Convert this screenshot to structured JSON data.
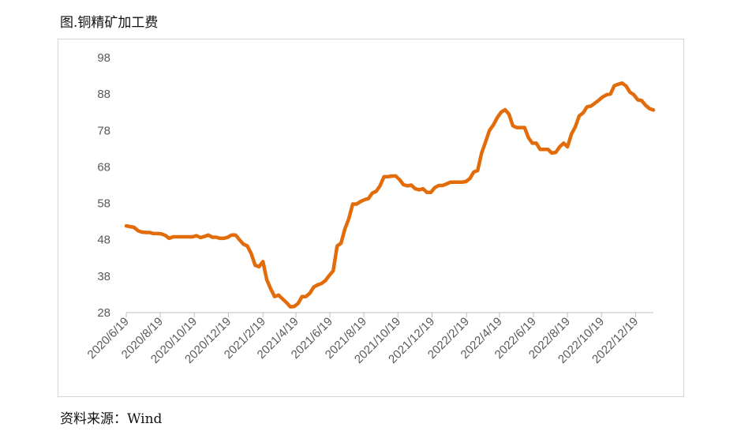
{
  "figure": {
    "title": "图.铜精矿加工费",
    "source": "资料来源：Wind"
  },
  "colors": {
    "line": "#E36C0A",
    "axis": "#BFBFBF",
    "text": "#595959"
  },
  "chart_data": {
    "type": "line",
    "title": "",
    "xlabel": "",
    "ylabel": "",
    "grid": false,
    "legend": "none",
    "yticks": [
      28,
      38,
      48,
      58,
      68,
      78,
      88,
      98
    ],
    "ylim": [
      28,
      98
    ],
    "xticks": [
      "2020/6/19",
      "2020/8/19",
      "2020/10/19",
      "2020/12/19",
      "2021/2/19",
      "2021/4/19",
      "2021/6/19",
      "2021/8/19",
      "2021/10/19",
      "2021/12/19",
      "2022/2/19",
      "2022/4/19",
      "2022/6/19",
      "2022/8/19",
      "2022/10/19",
      "2022/12/19"
    ],
    "series": [
      {
        "values": [
          [
            "2020-06-19",
            51.8
          ],
          [
            "2020-06-26",
            51.6
          ],
          [
            "2020-07-03",
            51.4
          ],
          [
            "2020-07-10",
            50.5
          ],
          [
            "2020-07-17",
            50.1
          ],
          [
            "2020-07-24",
            50.0
          ],
          [
            "2020-07-31",
            50.0
          ],
          [
            "2020-08-07",
            49.7
          ],
          [
            "2020-08-14",
            49.7
          ],
          [
            "2020-08-21",
            49.6
          ],
          [
            "2020-08-28",
            49.2
          ],
          [
            "2020-09-04",
            48.4
          ],
          [
            "2020-09-11",
            48.8
          ],
          [
            "2020-09-18",
            48.8
          ],
          [
            "2020-09-25",
            48.8
          ],
          [
            "2020-10-02",
            48.8
          ],
          [
            "2020-10-09",
            48.8
          ],
          [
            "2020-10-16",
            48.8
          ],
          [
            "2020-10-23",
            49.1
          ],
          [
            "2020-10-30",
            48.6
          ],
          [
            "2020-11-06",
            48.9
          ],
          [
            "2020-11-13",
            49.3
          ],
          [
            "2020-11-20",
            48.7
          ],
          [
            "2020-11-27",
            48.7
          ],
          [
            "2020-12-04",
            48.4
          ],
          [
            "2020-12-11",
            48.4
          ],
          [
            "2020-12-18",
            48.7
          ],
          [
            "2020-12-25",
            49.3
          ],
          [
            "2021-01-01",
            49.3
          ],
          [
            "2021-01-08",
            48.0
          ],
          [
            "2021-01-15",
            46.8
          ],
          [
            "2021-01-22",
            46.3
          ],
          [
            "2021-01-29",
            44.2
          ],
          [
            "2021-02-05",
            41.0
          ],
          [
            "2021-02-12",
            40.6
          ],
          [
            "2021-02-19",
            42.0
          ],
          [
            "2021-02-26",
            37.0
          ],
          [
            "2021-03-05",
            34.5
          ],
          [
            "2021-03-12",
            32.4
          ],
          [
            "2021-03-19",
            32.8
          ],
          [
            "2021-03-26",
            31.8
          ],
          [
            "2021-04-02",
            30.8
          ],
          [
            "2021-04-09",
            29.6
          ],
          [
            "2021-04-16",
            29.7
          ],
          [
            "2021-04-23",
            30.5
          ],
          [
            "2021-04-30",
            32.4
          ],
          [
            "2021-05-07",
            32.4
          ],
          [
            "2021-05-14",
            33.3
          ],
          [
            "2021-05-21",
            35.0
          ],
          [
            "2021-05-28",
            35.6
          ],
          [
            "2021-06-04",
            36.0
          ],
          [
            "2021-06-11",
            36.8
          ],
          [
            "2021-06-18",
            38.2
          ],
          [
            "2021-06-25",
            39.5
          ],
          [
            "2021-07-02",
            46.3
          ],
          [
            "2021-07-09",
            47.0
          ],
          [
            "2021-07-16",
            51.0
          ],
          [
            "2021-07-23",
            53.8
          ],
          [
            "2021-07-30",
            57.8
          ],
          [
            "2021-08-06",
            57.8
          ],
          [
            "2021-08-13",
            58.5
          ],
          [
            "2021-08-20",
            59.0
          ],
          [
            "2021-08-27",
            59.3
          ],
          [
            "2021-09-03",
            60.8
          ],
          [
            "2021-09-10",
            61.3
          ],
          [
            "2021-09-17",
            62.8
          ],
          [
            "2021-09-24",
            65.3
          ],
          [
            "2021-10-01",
            65.3
          ],
          [
            "2021-10-08",
            65.5
          ],
          [
            "2021-10-15",
            65.5
          ],
          [
            "2021-10-22",
            64.5
          ],
          [
            "2021-10-29",
            63.1
          ],
          [
            "2021-11-05",
            62.8
          ],
          [
            "2021-11-12",
            63.0
          ],
          [
            "2021-11-19",
            62.0
          ],
          [
            "2021-11-26",
            61.7
          ],
          [
            "2021-12-03",
            62.0
          ],
          [
            "2021-12-10",
            61.0
          ],
          [
            "2021-12-17",
            61.0
          ],
          [
            "2021-12-24",
            62.3
          ],
          [
            "2021-12-31",
            62.9
          ],
          [
            "2022-01-07",
            62.9
          ],
          [
            "2022-01-14",
            63.3
          ],
          [
            "2022-01-21",
            63.8
          ],
          [
            "2022-01-28",
            63.8
          ],
          [
            "2022-02-04",
            63.8
          ],
          [
            "2022-02-11",
            63.8
          ],
          [
            "2022-02-18",
            64.0
          ],
          [
            "2022-02-25",
            64.8
          ],
          [
            "2022-03-04",
            66.6
          ],
          [
            "2022-03-11",
            67.0
          ],
          [
            "2022-03-18",
            71.8
          ],
          [
            "2022-03-25",
            74.8
          ],
          [
            "2022-04-01",
            78.0
          ],
          [
            "2022-04-08",
            79.5
          ],
          [
            "2022-04-15",
            81.5
          ],
          [
            "2022-04-22",
            83.0
          ],
          [
            "2022-04-29",
            83.7
          ],
          [
            "2022-05-06",
            82.5
          ],
          [
            "2022-05-13",
            79.3
          ],
          [
            "2022-05-20",
            78.8
          ],
          [
            "2022-05-27",
            78.8
          ],
          [
            "2022-06-03",
            78.8
          ],
          [
            "2022-06-10",
            76.0
          ],
          [
            "2022-06-17",
            74.5
          ],
          [
            "2022-06-24",
            74.5
          ],
          [
            "2022-07-01",
            72.8
          ],
          [
            "2022-07-08",
            72.8
          ],
          [
            "2022-07-15",
            72.8
          ],
          [
            "2022-07-22",
            71.8
          ],
          [
            "2022-07-29",
            72.0
          ],
          [
            "2022-08-05",
            73.5
          ],
          [
            "2022-08-12",
            74.5
          ],
          [
            "2022-08-19",
            73.5
          ],
          [
            "2022-08-26",
            77.0
          ],
          [
            "2022-09-02",
            79.0
          ],
          [
            "2022-09-09",
            82.0
          ],
          [
            "2022-09-16",
            82.8
          ],
          [
            "2022-09-23",
            84.5
          ],
          [
            "2022-09-30",
            84.7
          ],
          [
            "2022-10-07",
            85.5
          ],
          [
            "2022-10-14",
            86.3
          ],
          [
            "2022-10-21",
            87.2
          ],
          [
            "2022-10-28",
            87.8
          ],
          [
            "2022-11-04",
            88.0
          ],
          [
            "2022-11-11",
            90.3
          ],
          [
            "2022-11-18",
            90.7
          ],
          [
            "2022-11-25",
            91.0
          ],
          [
            "2022-12-02",
            90.2
          ],
          [
            "2022-12-09",
            88.5
          ],
          [
            "2022-12-16",
            87.8
          ],
          [
            "2022-12-23",
            86.4
          ],
          [
            "2022-12-30",
            86.2
          ],
          [
            "2023-01-06",
            84.9
          ],
          [
            "2023-01-13",
            84.0
          ],
          [
            "2023-01-20",
            83.6
          ]
        ]
      }
    ]
  }
}
